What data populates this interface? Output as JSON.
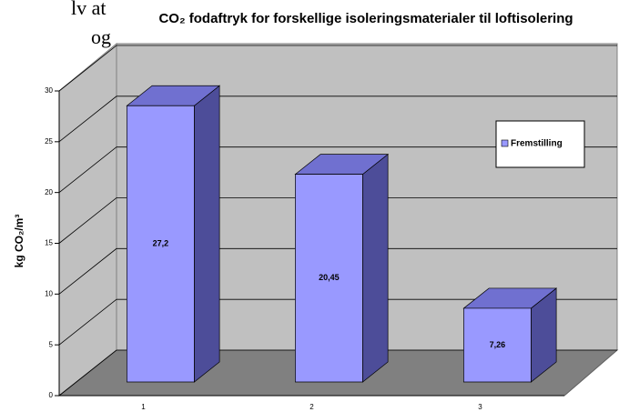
{
  "page_text": [
    "lv at",
    "og"
  ],
  "chart_data": {
    "type": "bar3d",
    "title": "CO₂ fodaftryk for forskellige isoleringsmaterialer til loftisolering",
    "ylabel": "kg CO₂/m³",
    "categories": [
      "1",
      "2",
      "3"
    ],
    "series": [
      {
        "name": "Fremstilling",
        "color": "#9999ff",
        "values": [
          27.2,
          20.45,
          7.26
        ],
        "value_labels": [
          "27,2",
          "20,45",
          "7,26"
        ]
      }
    ],
    "ylim": [
      0,
      30
    ],
    "yticks": [
      0,
      5,
      10,
      15,
      20,
      25,
      30
    ],
    "grid": true,
    "legend": "right"
  }
}
